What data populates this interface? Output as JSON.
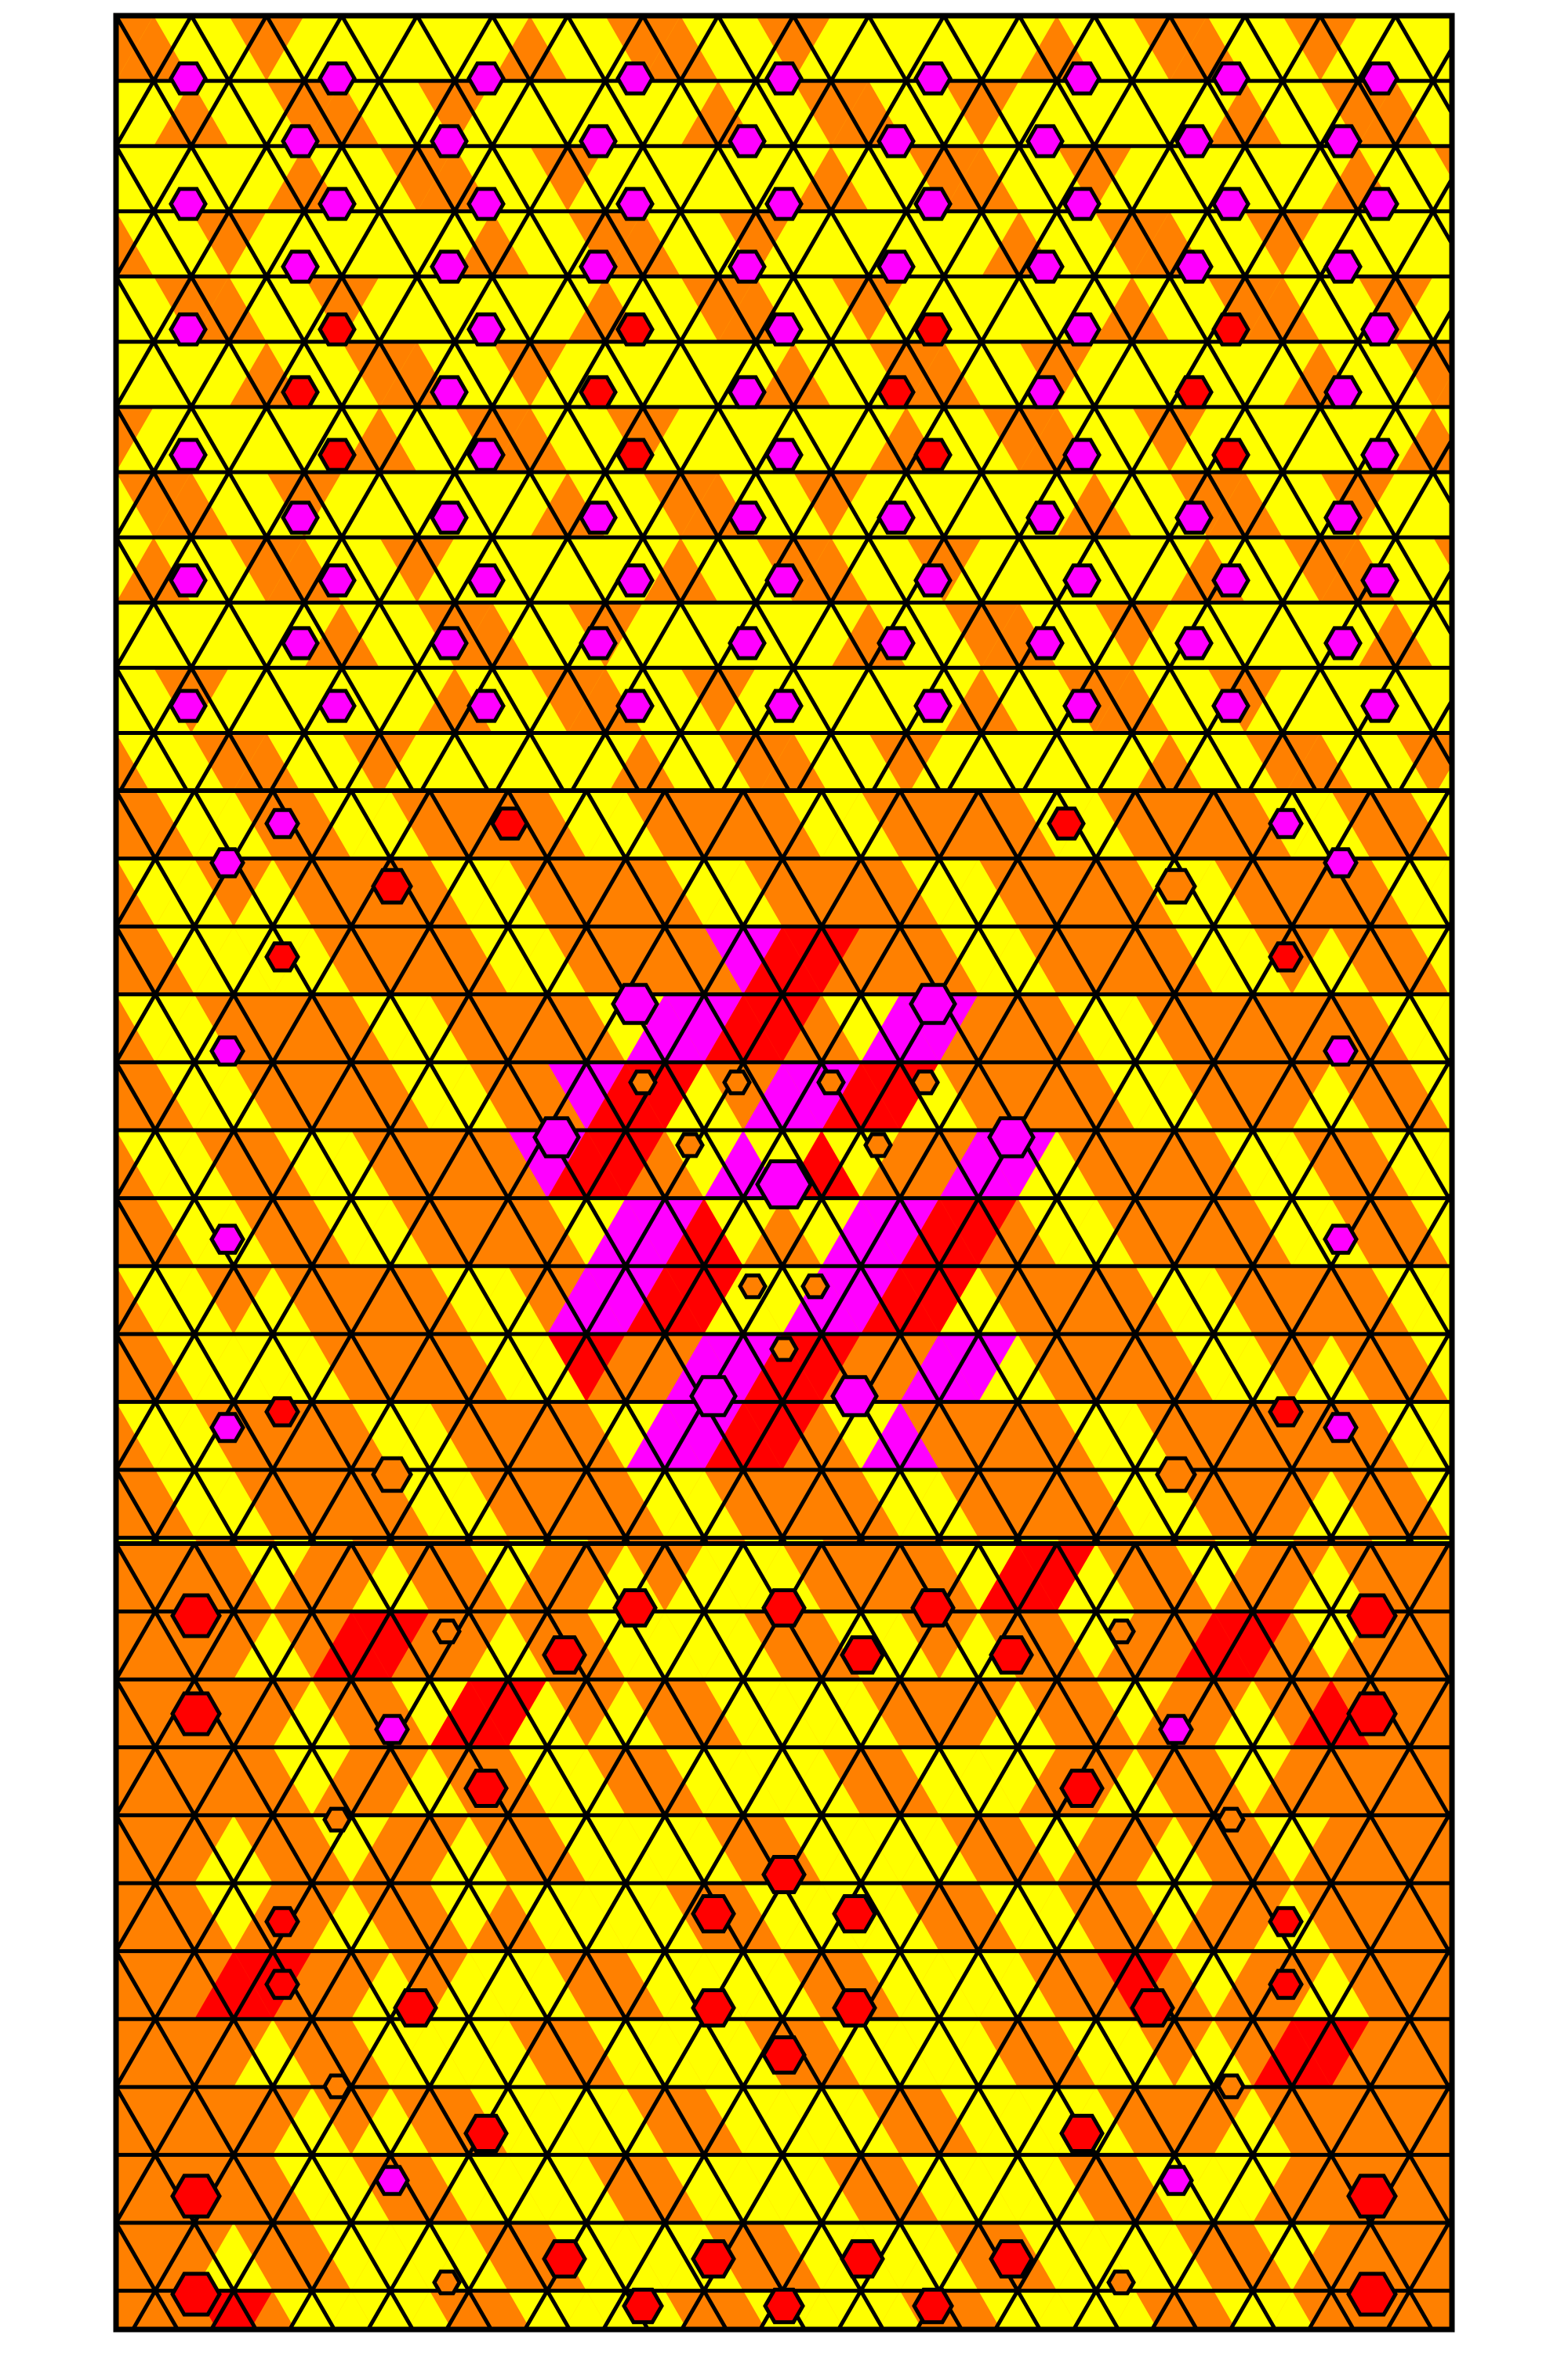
{
  "palette": {
    "background": "#ffffff",
    "orange": "#ff8000",
    "yellow": "#ffff00",
    "magenta": "#ff00ff",
    "red": "#ff0000",
    "outline": "#000000"
  },
  "artwork": {
    "description_text": ""
  }
}
